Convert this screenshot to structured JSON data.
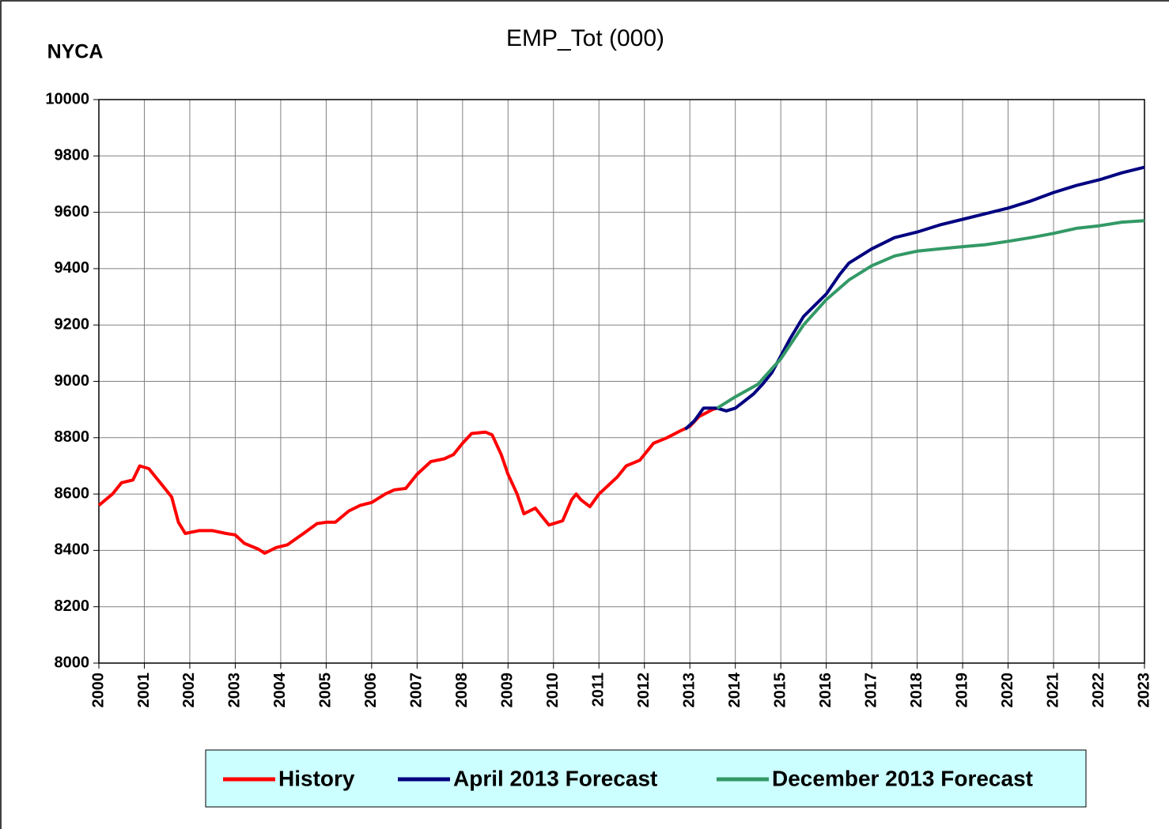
{
  "chart_data": {
    "type": "line",
    "title": "EMP_Tot (000)",
    "annotation": "NYCA",
    "xlim": [
      2000,
      2023
    ],
    "xticks": [
      2000,
      2001,
      2002,
      2003,
      2004,
      2005,
      2006,
      2007,
      2008,
      2009,
      2010,
      2011,
      2012,
      2013,
      2014,
      2015,
      2016,
      2017,
      2018,
      2019,
      2020,
      2021,
      2022,
      2023
    ],
    "ylim": [
      8000,
      10000
    ],
    "yticks": [
      8000,
      8200,
      8400,
      8600,
      8800,
      9000,
      9200,
      9400,
      9600,
      9800,
      10000
    ],
    "grid": true,
    "legend": "bottom",
    "series": [
      {
        "name": "History",
        "color": "#ff0000",
        "x": [
          2000.0,
          2000.3,
          2000.5,
          2000.75,
          2000.9,
          2001.1,
          2001.4,
          2001.6,
          2001.75,
          2001.9,
          2002.2,
          2002.5,
          2002.8,
          2003.0,
          2003.2,
          2003.5,
          2003.65,
          2003.9,
          2004.15,
          2004.5,
          2004.8,
          2005.0,
          2005.2,
          2005.5,
          2005.75,
          2006.0,
          2006.3,
          2006.5,
          2006.75,
          2007.0,
          2007.3,
          2007.6,
          2007.8,
          2008.0,
          2008.2,
          2008.5,
          2008.65,
          2008.85,
          2009.0,
          2009.2,
          2009.35,
          2009.6,
          2009.75,
          2009.9,
          2010.2,
          2010.4,
          2010.5,
          2010.6,
          2010.8,
          2011.0,
          2011.2,
          2011.4,
          2011.6,
          2011.9,
          2012.2,
          2012.5,
          2012.8,
          2013.0,
          2013.2,
          2013.5,
          2013.6
        ],
        "values": [
          8560,
          8600,
          8640,
          8650,
          8700,
          8690,
          8630,
          8590,
          8500,
          8460,
          8470,
          8470,
          8460,
          8455,
          8425,
          8405,
          8390,
          8410,
          8420,
          8460,
          8495,
          8500,
          8500,
          8540,
          8560,
          8570,
          8600,
          8615,
          8620,
          8670,
          8715,
          8725,
          8740,
          8780,
          8815,
          8820,
          8810,
          8740,
          8670,
          8600,
          8530,
          8550,
          8520,
          8490,
          8505,
          8580,
          8600,
          8580,
          8555,
          8600,
          8630,
          8660,
          8700,
          8720,
          8780,
          8800,
          8825,
          8840,
          8875,
          8900,
          8905
        ]
      },
      {
        "name": "April 2013 Forecast",
        "color": "#000080",
        "x": [
          2012.9,
          2013.1,
          2013.3,
          2013.6,
          2013.8,
          2014.0,
          2014.2,
          2014.4,
          2014.6,
          2014.8,
          2015.0,
          2015.2,
          2015.5,
          2015.75,
          2016.0,
          2016.3,
          2016.5,
          2017.0,
          2017.5,
          2018.0,
          2018.5,
          2019.0,
          2019.5,
          2020.0,
          2020.5,
          2021.0,
          2021.5,
          2022.0,
          2022.5,
          2023.0
        ],
        "values": [
          8830,
          8860,
          8905,
          8905,
          8895,
          8905,
          8930,
          8955,
          8990,
          9030,
          9090,
          9150,
          9230,
          9270,
          9310,
          9380,
          9420,
          9470,
          9510,
          9530,
          9555,
          9575,
          9595,
          9615,
          9640,
          9670,
          9695,
          9715,
          9740,
          9760
        ]
      },
      {
        "name": "December 2013 Forecast",
        "color": "#339966",
        "x": [
          2013.6,
          2014.0,
          2014.5,
          2015.0,
          2015.5,
          2016.0,
          2016.5,
          2017.0,
          2017.5,
          2018.0,
          2018.5,
          2019.0,
          2019.5,
          2020.0,
          2020.5,
          2021.0,
          2021.5,
          2022.0,
          2022.5,
          2023.0
        ],
        "values": [
          8905,
          8945,
          8990,
          9080,
          9200,
          9290,
          9360,
          9410,
          9445,
          9462,
          9470,
          9478,
          9485,
          9497,
          9510,
          9525,
          9543,
          9552,
          9565,
          9570
        ]
      }
    ]
  }
}
